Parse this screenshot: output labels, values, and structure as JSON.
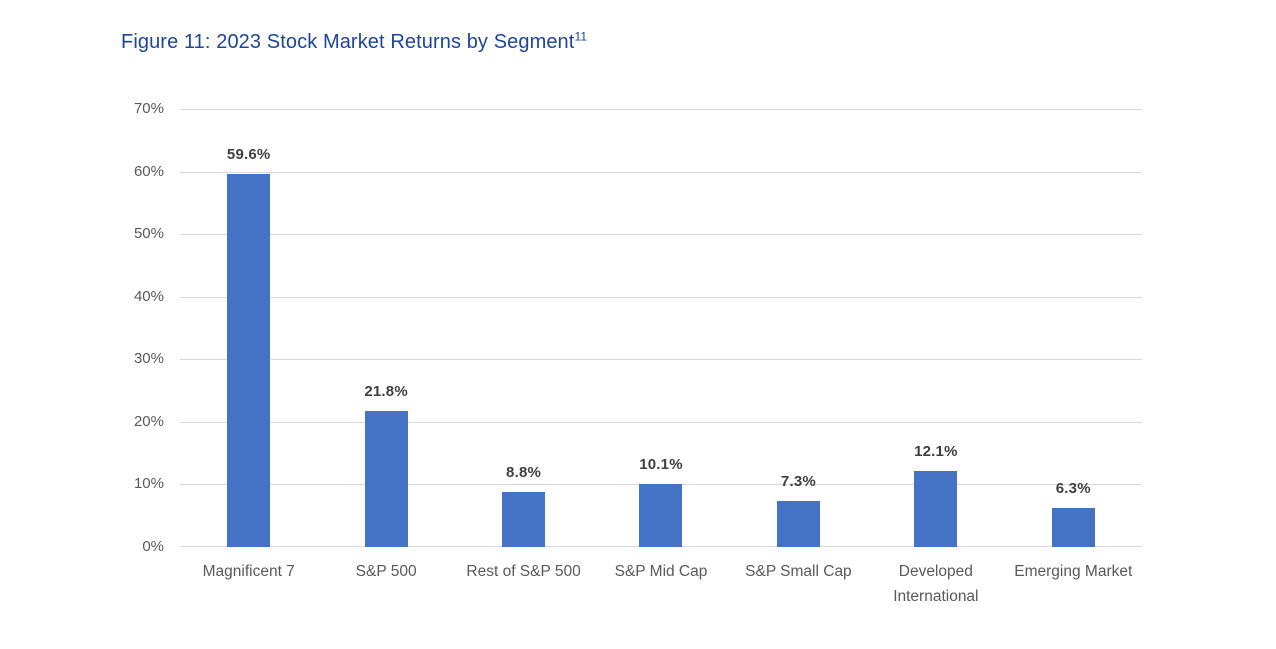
{
  "figure": {
    "title": "Figure 11: 2023 Stock Market Returns by Segment",
    "title_superscript": "11"
  },
  "chart_data": {
    "type": "bar",
    "title": "Figure 11: 2023 Stock Market Returns by Segment",
    "title_superscript": "11",
    "categories": [
      "Magnificent 7",
      "S&P 500",
      "Rest of S&P 500",
      "S&P Mid Cap",
      "S&P Small Cap",
      "Developed International",
      "Emerging Market"
    ],
    "values": [
      59.6,
      21.8,
      8.8,
      10.1,
      7.3,
      12.1,
      6.3
    ],
    "data_labels": [
      "59.6%",
      "21.8%",
      "8.8%",
      "10.1%",
      "7.3%",
      "12.1%",
      "6.3%"
    ],
    "xlabel": "",
    "ylabel": "",
    "y_axis": {
      "min": 0,
      "max": 70,
      "step": 10,
      "ticks": [
        "0%",
        "10%",
        "20%",
        "30%",
        "40%",
        "50%",
        "60%",
        "70%"
      ]
    },
    "grid": true,
    "legend": false,
    "colors": {
      "bar": "#4472C4",
      "gridline": "#D9D9D9",
      "axis_text": "#595959",
      "data_label": "#3F3F3F",
      "title": "#1C459B",
      "background": "#FFFFFF"
    }
  }
}
